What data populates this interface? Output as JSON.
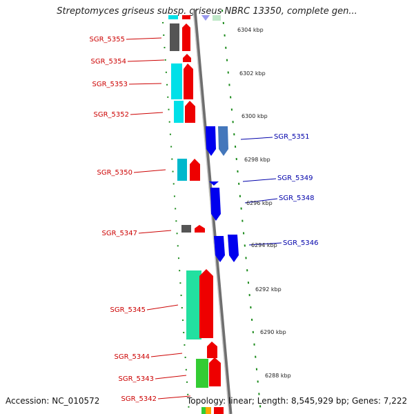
{
  "title": "Streptomyces griseus subsp. griseus NBRC 13350, complete gen...",
  "footer": {
    "accession": "Accession: NC_010572",
    "summary": "Topology: linear; Length: 8,545,929 bp; Genes: 7,222"
  },
  "colors": {
    "left_label": "#cc0000",
    "right_label": "#0000aa",
    "backbone": "#888888",
    "tick": "#1a8a1a"
  },
  "scale_labels": [
    "6304 kbp",
    "6302 kbp",
    "6300 kbp",
    "6298 kbp",
    "6296 kbp",
    "6294 kbp",
    "6292 kbp",
    "6290 kbp",
    "6288 kbp"
  ],
  "left_genes": [
    "SGR_5355",
    "SGR_5354",
    "SGR_5353",
    "SGR_5352",
    "SGR_5350",
    "SGR_5347",
    "SGR_5345",
    "SGR_5344",
    "SGR_5343",
    "SGR_5342"
  ],
  "right_genes": [
    "SGR_5351",
    "SGR_5349",
    "SGR_5348",
    "SGR_5346"
  ]
}
